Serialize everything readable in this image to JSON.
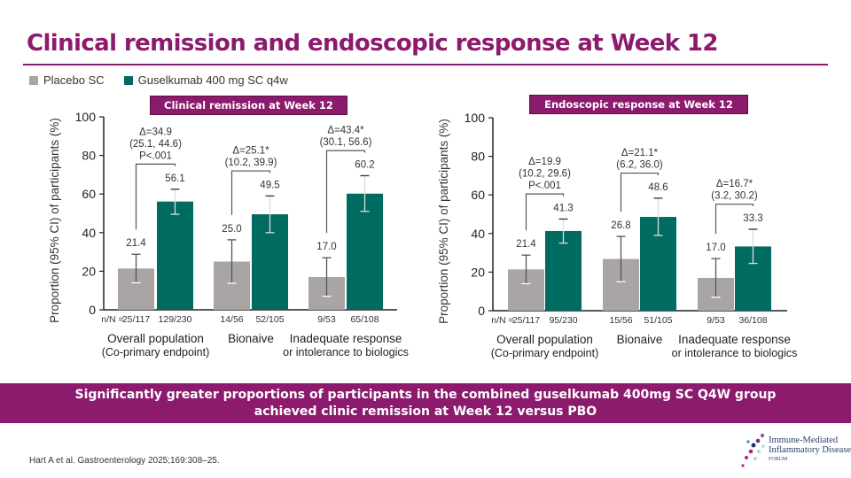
{
  "title": "Clinical remission and endoscopic response at Week 12",
  "legend": {
    "placebo": "Placebo SC",
    "guselkumab": "Guselkumab 400 mg SC q4w"
  },
  "colors": {
    "brand": "#8c1a6d",
    "placebo": "#a9a5a4",
    "guselkumab": "#006b61"
  },
  "chart_data": [
    {
      "type": "bar",
      "title": "Clinical remission at Week 12",
      "ylabel": "Proportion (95% CI) of participants (%)",
      "ylim": [
        0,
        100
      ],
      "yticks": [
        0,
        20,
        40,
        60,
        80,
        100
      ],
      "nN_label": "n/N =",
      "groups": [
        {
          "label1": "Overall population",
          "label2": "(Co-primary endpoint)",
          "delta": "Δ=34.9",
          "ci": "(25.1, 44.6)",
          "p": "P<.001",
          "placebo": {
            "value": 21.4,
            "label": "21.4",
            "ci": [
              14.0,
              28.8
            ],
            "nN": "25/117"
          },
          "guselkumab": {
            "value": 56.1,
            "label": "56.1",
            "ci": [
              49.5,
              62.5
            ],
            "nN": "129/230"
          }
        },
        {
          "label1": "Bionaive",
          "label2": "",
          "delta": "Δ=25.1*",
          "ci": "(10.2, 39.9)",
          "p": "",
          "placebo": {
            "value": 25.0,
            "label": "25.0",
            "ci": [
              13.8,
              36.3
            ],
            "nN": "14/56"
          },
          "guselkumab": {
            "value": 49.5,
            "label": "49.5",
            "ci": [
              40.0,
              59.0
            ],
            "nN": "52/105"
          }
        },
        {
          "label1": "Inadequate response",
          "label2": "or intolerance to biologics",
          "delta": "Δ=43.4*",
          "ci": "(30.1, 56.6)",
          "p": "",
          "placebo": {
            "value": 17.0,
            "label": "17.0",
            "ci": [
              7.0,
              27.0
            ],
            "nN": "9/53"
          },
          "guselkumab": {
            "value": 60.2,
            "label": "60.2",
            "ci": [
              51.0,
              69.5
            ],
            "nN": "65/108"
          }
        }
      ]
    },
    {
      "type": "bar",
      "title": "Endoscopic response at Week 12",
      "ylabel": "Proportion (95% CI) of participants (%)",
      "ylim": [
        0,
        100
      ],
      "yticks": [
        0,
        20,
        40,
        60,
        80,
        100
      ],
      "nN_label": "n/N =",
      "groups": [
        {
          "label1": "Overall population",
          "label2": "(Co-primary endpoint)",
          "delta": "Δ=19.9",
          "ci": "(10.2, 29.6)",
          "p": "P<.001",
          "placebo": {
            "value": 21.4,
            "label": "21.4",
            "ci": [
              14.0,
              28.8
            ],
            "nN": "25/117"
          },
          "guselkumab": {
            "value": 41.3,
            "label": "41.3",
            "ci": [
              35.0,
              47.5
            ],
            "nN": "95/230"
          }
        },
        {
          "label1": "Bionaive",
          "label2": "",
          "delta": "Δ=21.1*",
          "ci": "(6.2, 36.0)",
          "p": "",
          "placebo": {
            "value": 26.8,
            "label": "26.8",
            "ci": [
              15.0,
              38.5
            ],
            "nN": "15/56"
          },
          "guselkumab": {
            "value": 48.6,
            "label": "48.6",
            "ci": [
              39.0,
              58.3
            ],
            "nN": "51/105"
          }
        },
        {
          "label1": "Inadequate response",
          "label2": "or intolerance to biologics",
          "delta": "Δ=16.7*",
          "ci": "(3.2, 30.2)",
          "p": "",
          "placebo": {
            "value": 17.0,
            "label": "17.0",
            "ci": [
              7.0,
              27.0
            ],
            "nN": "9/53"
          },
          "guselkumab": {
            "value": 33.3,
            "label": "33.3",
            "ci": [
              24.5,
              42.2
            ],
            "nN": "36/108"
          }
        }
      ]
    }
  ],
  "banner": {
    "line1": "Significantly greater proportions of participants in the combined guselkumab 400mg SC Q4W group",
    "line2": "achieved clinic remission at Week 12 versus PBO"
  },
  "footnote": "Hart A et al. Gastroenterology 2025;169:308–25.",
  "logo": {
    "line1": "Immune-Mediated",
    "line2": "Inflammatory Disease",
    "line3": "FORUM"
  }
}
